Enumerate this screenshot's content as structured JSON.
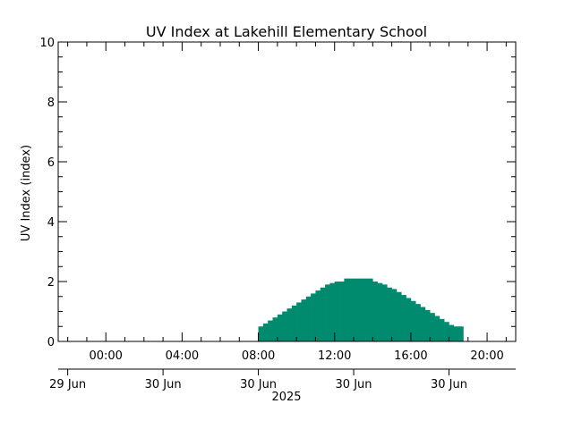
{
  "chart_data": {
    "type": "area",
    "title": "UV Index at Lakehill Elementary School",
    "ylabel": "UV Index (index)",
    "xlabel": "",
    "ylim": [
      0,
      10
    ],
    "xlim_hours": [
      -2.5,
      21.5
    ],
    "yticks": [
      "0",
      "2",
      "4",
      "6",
      "8",
      "10"
    ],
    "ytick_values": [
      0,
      2,
      4,
      6,
      8,
      10
    ],
    "xticks_time": [
      "00:00",
      "04:00",
      "08:00",
      "12:00",
      "16:00",
      "20:00"
    ],
    "xticks_time_hours": [
      0,
      4,
      8,
      12,
      16,
      20
    ],
    "xticks_date": [
      "29 Jun",
      "30 Jun",
      "30 Jun",
      "30 Jun",
      "30 Jun"
    ],
    "xticks_date_hours": [
      -2,
      3,
      8,
      13,
      18
    ],
    "year_label": "2025",
    "fill_color": "#008a6e",
    "series": [
      {
        "x": [
          8.0,
          8.25,
          8.5,
          8.75,
          9.0,
          9.25,
          9.5,
          9.75,
          10.0,
          10.25,
          10.5,
          10.75,
          11.0,
          11.25,
          11.5,
          11.75,
          12.0,
          12.25,
          12.5,
          12.75,
          13.0,
          13.25,
          13.5,
          13.75,
          14.0,
          14.25,
          14.5,
          14.75,
          15.0,
          15.25,
          15.5,
          15.75,
          16.0,
          16.25,
          16.5,
          16.75,
          17.0,
          17.25,
          17.5,
          17.75,
          18.0,
          18.25,
          18.5
        ],
        "values": [
          0.5,
          0.6,
          0.7,
          0.8,
          0.9,
          1.0,
          1.1,
          1.2,
          1.3,
          1.4,
          1.5,
          1.6,
          1.7,
          1.8,
          1.9,
          1.95,
          2.0,
          2.0,
          2.1,
          2.1,
          2.1,
          2.1,
          2.1,
          2.1,
          2.0,
          1.95,
          1.9,
          1.8,
          1.75,
          1.65,
          1.55,
          1.45,
          1.35,
          1.25,
          1.15,
          1.05,
          0.95,
          0.85,
          0.75,
          0.65,
          0.55,
          0.5,
          0.5
        ]
      }
    ]
  }
}
